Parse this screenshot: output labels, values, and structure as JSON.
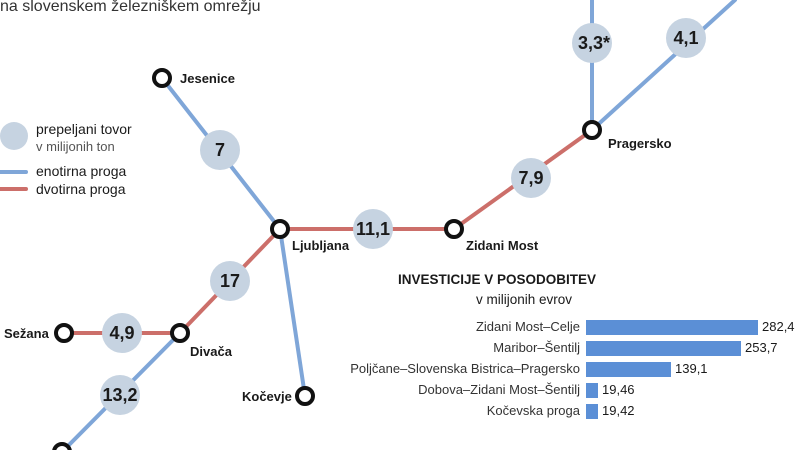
{
  "subtitle": "na slovenskem železniškem omrežju",
  "legend": {
    "cargo_label": "prepeljani tovor",
    "cargo_sub": "v milijonih ton",
    "single_track": "enotirna proga",
    "double_track": "dvotirna proga"
  },
  "colors": {
    "single_track": "#7fa6d8",
    "double_track": "#cc6f6a",
    "bubble": "#c6d3e1",
    "bar": "#5b8fd6"
  },
  "stations": {
    "jesenice": "Jesenice",
    "ljubljana": "Ljubljana",
    "zidani_most": "Zidani Most",
    "pragersko": "Pragersko",
    "divaca": "Divača",
    "sezana": "Sežana",
    "kocevje": "Kočevje"
  },
  "cargo_values": {
    "jesenice_ljubljana": "7",
    "ljubljana_zidani_most": "11,1",
    "zidani_most_pragersko": "7,9",
    "pragersko_north_a": "3,3*",
    "pragersko_north_b": "4,1",
    "ljubljana_divaca": "17",
    "sezana_divaca": "4,9",
    "divaca_south": "13,2"
  },
  "investments": {
    "title": "INVESTICIJE V POSODOBITEV",
    "subtitle": "v milijonih evrov",
    "items": [
      {
        "label": "Zidani Most–Celje",
        "value": 282.4,
        "display": "282,4"
      },
      {
        "label": "Maribor–Šentilj",
        "value": 253.7,
        "display": "253,7"
      },
      {
        "label": "Poljčane–Slovenska Bistrica–Pragersko",
        "value": 139.1,
        "display": "139,1"
      },
      {
        "label": "Dobova–Zidani Most–Šentilj",
        "value": 19.46,
        "display": "19,46"
      },
      {
        "label": "Kočevska proga",
        "value": 19.42,
        "display": "19,42"
      }
    ]
  }
}
